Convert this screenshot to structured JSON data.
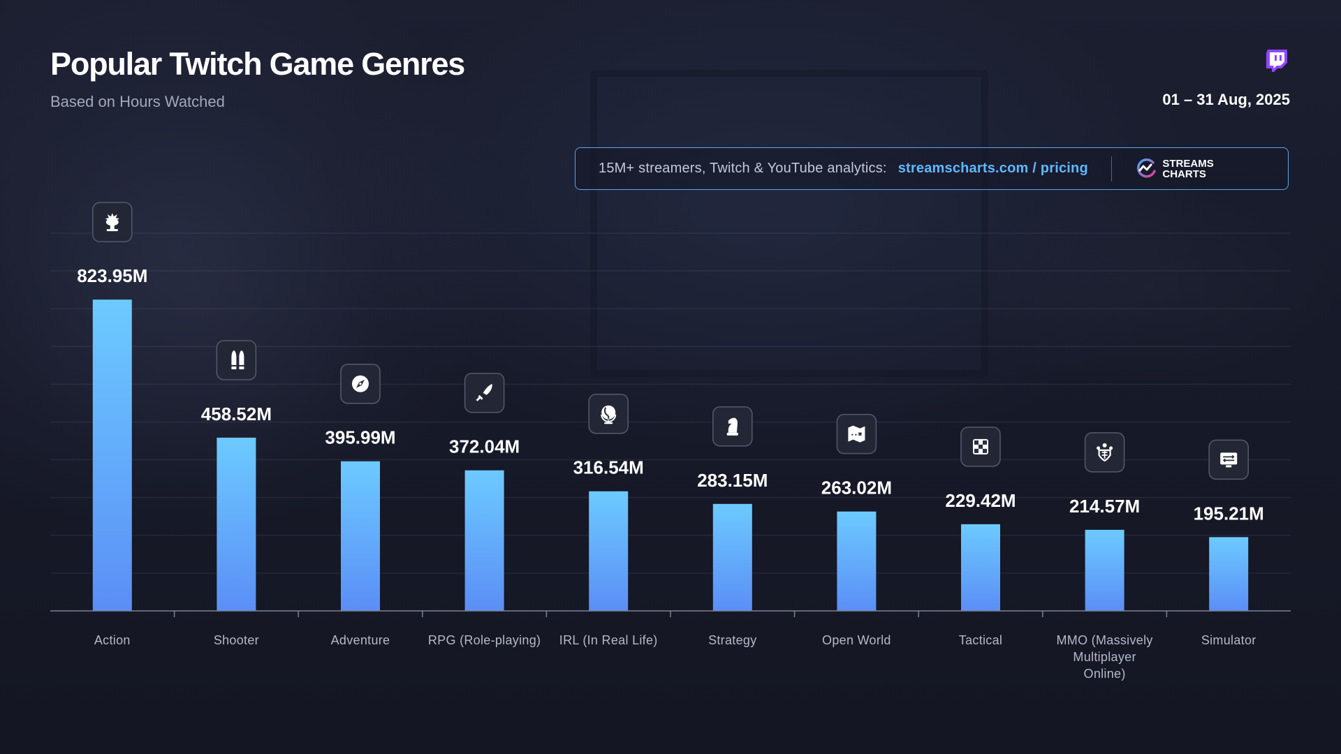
{
  "header": {
    "title": "Popular Twitch Game Genres",
    "subtitle": "Based on Hours Watched",
    "date_range": "01 – 31 Aug, 2025"
  },
  "promo": {
    "text": "15M+ streamers, Twitch & YouTube analytics:",
    "link": "streamscharts.com / pricing",
    "brand_line1": "STREAMS",
    "brand_line2": "CHARTS"
  },
  "colors": {
    "bar_top": "#6ccaff",
    "bar_bottom": "#5b8ef6",
    "accent_twitch": "#9146ff",
    "link": "#5fb8ff"
  },
  "chart_data": {
    "type": "bar",
    "unit": "M",
    "categories": [
      "Action",
      "Shooter",
      "Adventure",
      "RPG (Role-playing)",
      "IRL (In Real Life)",
      "Strategy",
      "Open World",
      "Tactical",
      "MMO (Massively Multiplayer Online)",
      "Simulator"
    ],
    "category_label_lines": [
      [
        "Action"
      ],
      [
        "Shooter"
      ],
      [
        "Adventure"
      ],
      [
        "RPG (Role-playing)"
      ],
      [
        "IRL (In Real Life)"
      ],
      [
        "Strategy"
      ],
      [
        "Open World"
      ],
      [
        "Tactical"
      ],
      [
        "MMO (Massively",
        "Multiplayer",
        "Online)"
      ],
      [
        "Simulator"
      ]
    ],
    "values": [
      823.95,
      458.52,
      395.99,
      372.04,
      316.54,
      283.15,
      263.02,
      229.42,
      214.57,
      195.21
    ],
    "value_labels": [
      "823.95M",
      "458.52M",
      "395.99M",
      "372.04M",
      "316.54M",
      "283.15M",
      "263.02M",
      "229.42M",
      "214.57M",
      "195.21M"
    ],
    "icons": [
      "explosion-icon",
      "bullets-icon",
      "compass-icon",
      "sword-icon",
      "globe-icon",
      "chess-knight-icon",
      "treasure-map-icon",
      "dice-icon",
      "guild-crest-icon",
      "simulator-screen-icon"
    ],
    "ylim": [
      0,
      1000
    ],
    "grid": true,
    "legend": "none"
  }
}
